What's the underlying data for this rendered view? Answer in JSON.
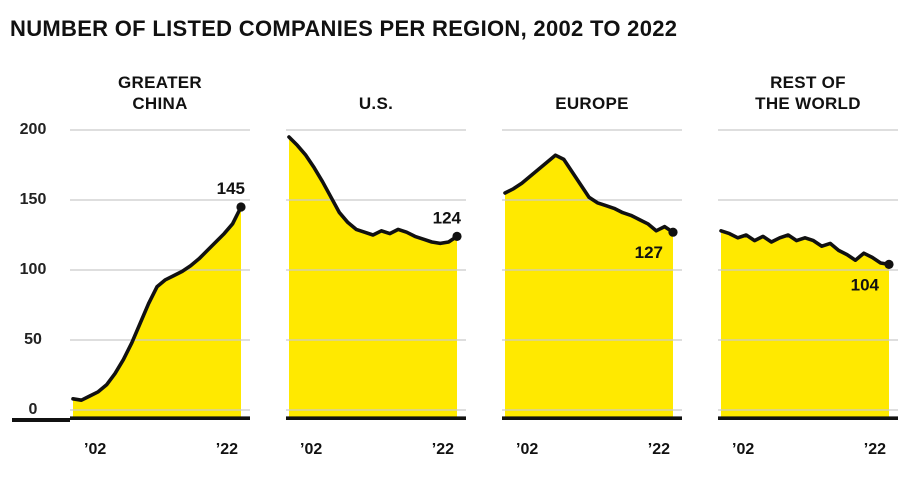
{
  "header": {
    "title": "NUMBER OF LISTED COMPANIES PER REGION, 2002 TO 2022"
  },
  "chart_data": {
    "type": "area",
    "title": "NUMBER OF LISTED COMPANIES PER REGION, 2002 TO 2022",
    "x_start_label": "’02",
    "x_end_label": "’22",
    "years": [
      2002,
      2003,
      2004,
      2005,
      2006,
      2007,
      2008,
      2009,
      2010,
      2011,
      2012,
      2013,
      2014,
      2015,
      2016,
      2017,
      2018,
      2019,
      2020,
      2021,
      2022
    ],
    "y_ticks": [
      200,
      150,
      100,
      50,
      0
    ],
    "ylim": [
      0,
      200
    ],
    "grid": true,
    "fill_color": "#FFE900",
    "line_color": "#111111",
    "grid_color": "#c9c9c9",
    "panels": [
      {
        "name": "GREATER\nCHINA",
        "end_value": 145,
        "label_position": "above",
        "values": [
          8,
          7,
          10,
          13,
          18,
          26,
          36,
          48,
          62,
          76,
          88,
          93,
          96,
          99,
          103,
          108,
          114,
          120,
          126,
          133,
          145
        ]
      },
      {
        "name": "U.S.",
        "end_value": 124,
        "label_position": "above",
        "values": [
          195,
          189,
          182,
          173,
          163,
          152,
          141,
          134,
          129,
          127,
          125,
          128,
          126,
          129,
          127,
          124,
          122,
          120,
          119,
          120,
          124
        ]
      },
      {
        "name": "EUROPE",
        "end_value": 127,
        "label_position": "below",
        "values": [
          155,
          158,
          162,
          167,
          172,
          177,
          182,
          179,
          170,
          161,
          152,
          148,
          146,
          144,
          141,
          139,
          136,
          133,
          128,
          131,
          127
        ]
      },
      {
        "name": "REST OF\nTHE WORLD",
        "end_value": 104,
        "label_position": "below",
        "values": [
          128,
          126,
          123,
          125,
          121,
          124,
          120,
          123,
          125,
          121,
          123,
          121,
          117,
          119,
          114,
          111,
          107,
          112,
          109,
          105,
          104
        ]
      }
    ]
  }
}
